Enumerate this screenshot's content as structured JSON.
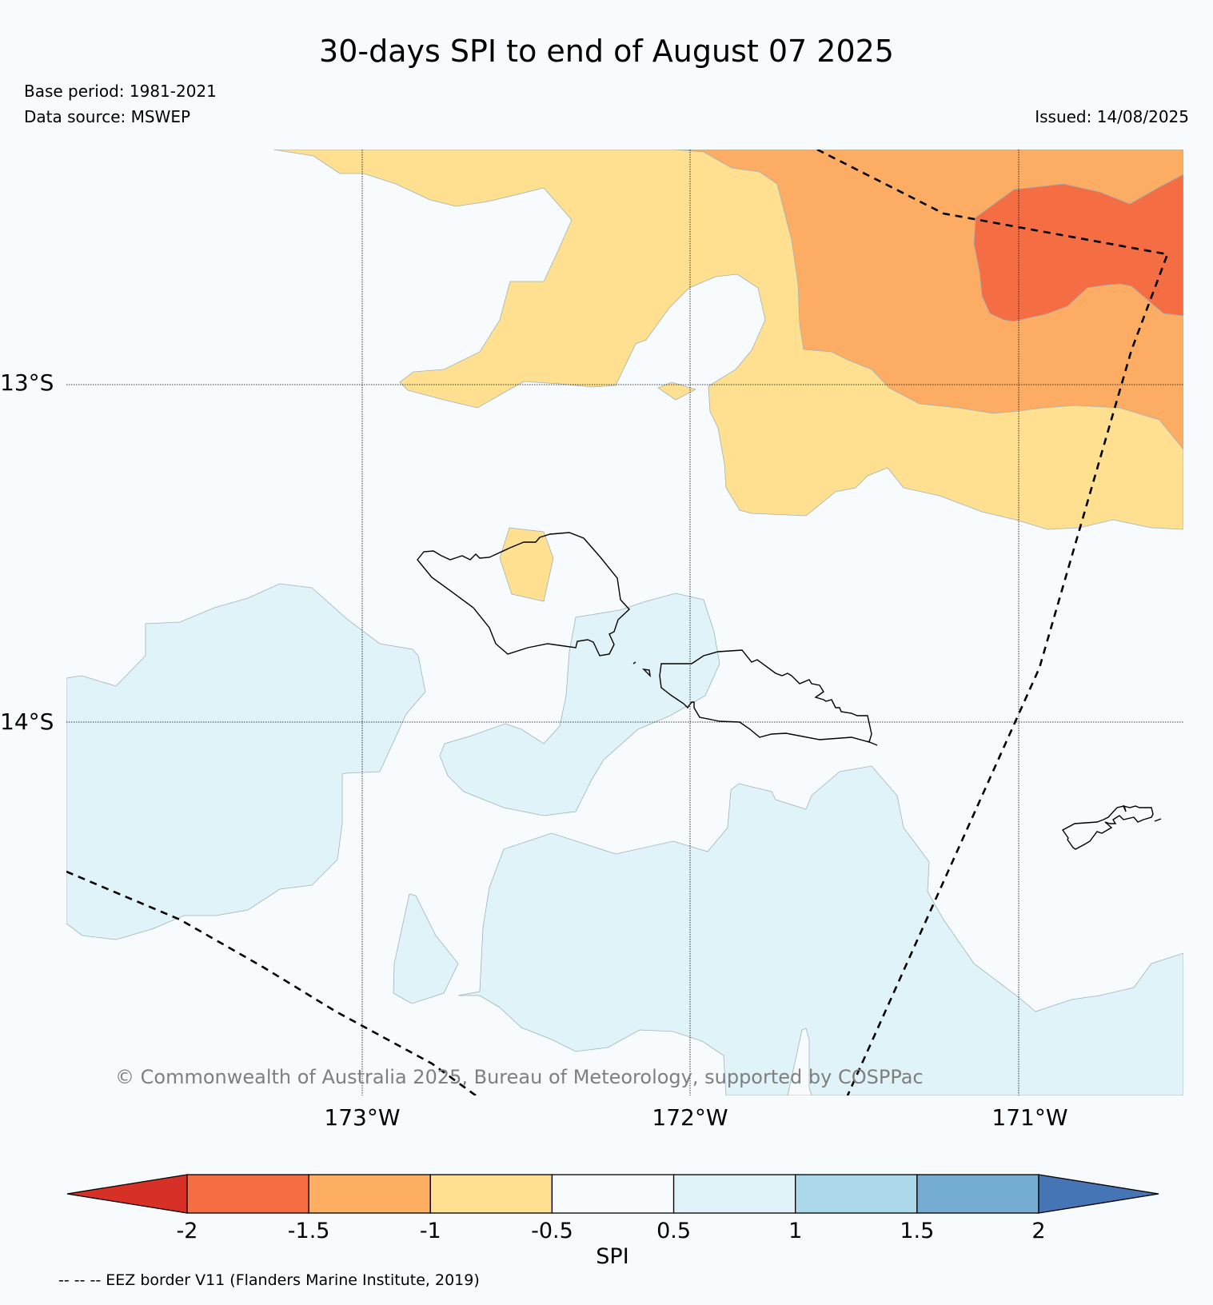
{
  "header": {
    "title": "30-days SPI to end of August 07 2025",
    "base_period": "Base period: 1981-2021",
    "data_source": "Data source: MSWEP",
    "issued": "Issued: 14/08/2025"
  },
  "map": {
    "lat_labels": [
      "13°S",
      "14°S"
    ],
    "lon_labels": [
      "173°W",
      "172°W",
      "171°W"
    ],
    "copyright": "© Commonwealth of Australia 2025, Bureau of Meteorology, supported by COSPPac",
    "colors": {
      "spi_-1.5_to_-1": "#fcac63",
      "spi_-1_to_-0.5": "#fee090",
      "spi_-2_to_-1.5": "#f46d43",
      "spi_0.5_to_1": "#e0f3f8",
      "background": "#f7fbfd"
    }
  },
  "colorbar": {
    "label": "SPI",
    "ticks": [
      "-2",
      "-1.5",
      "-1",
      "-0.5",
      "0.5",
      "1",
      "1.5",
      "2"
    ],
    "colors": [
      "#d73027",
      "#f46d43",
      "#fdae61",
      "#fee090",
      "#f7fbfd",
      "#e0f3f8",
      "#abd9e9",
      "#74add1",
      "#4575b4"
    ]
  },
  "footnote": "-- -- -- EEZ border V11 (Flanders Marine Institute, 2019)"
}
